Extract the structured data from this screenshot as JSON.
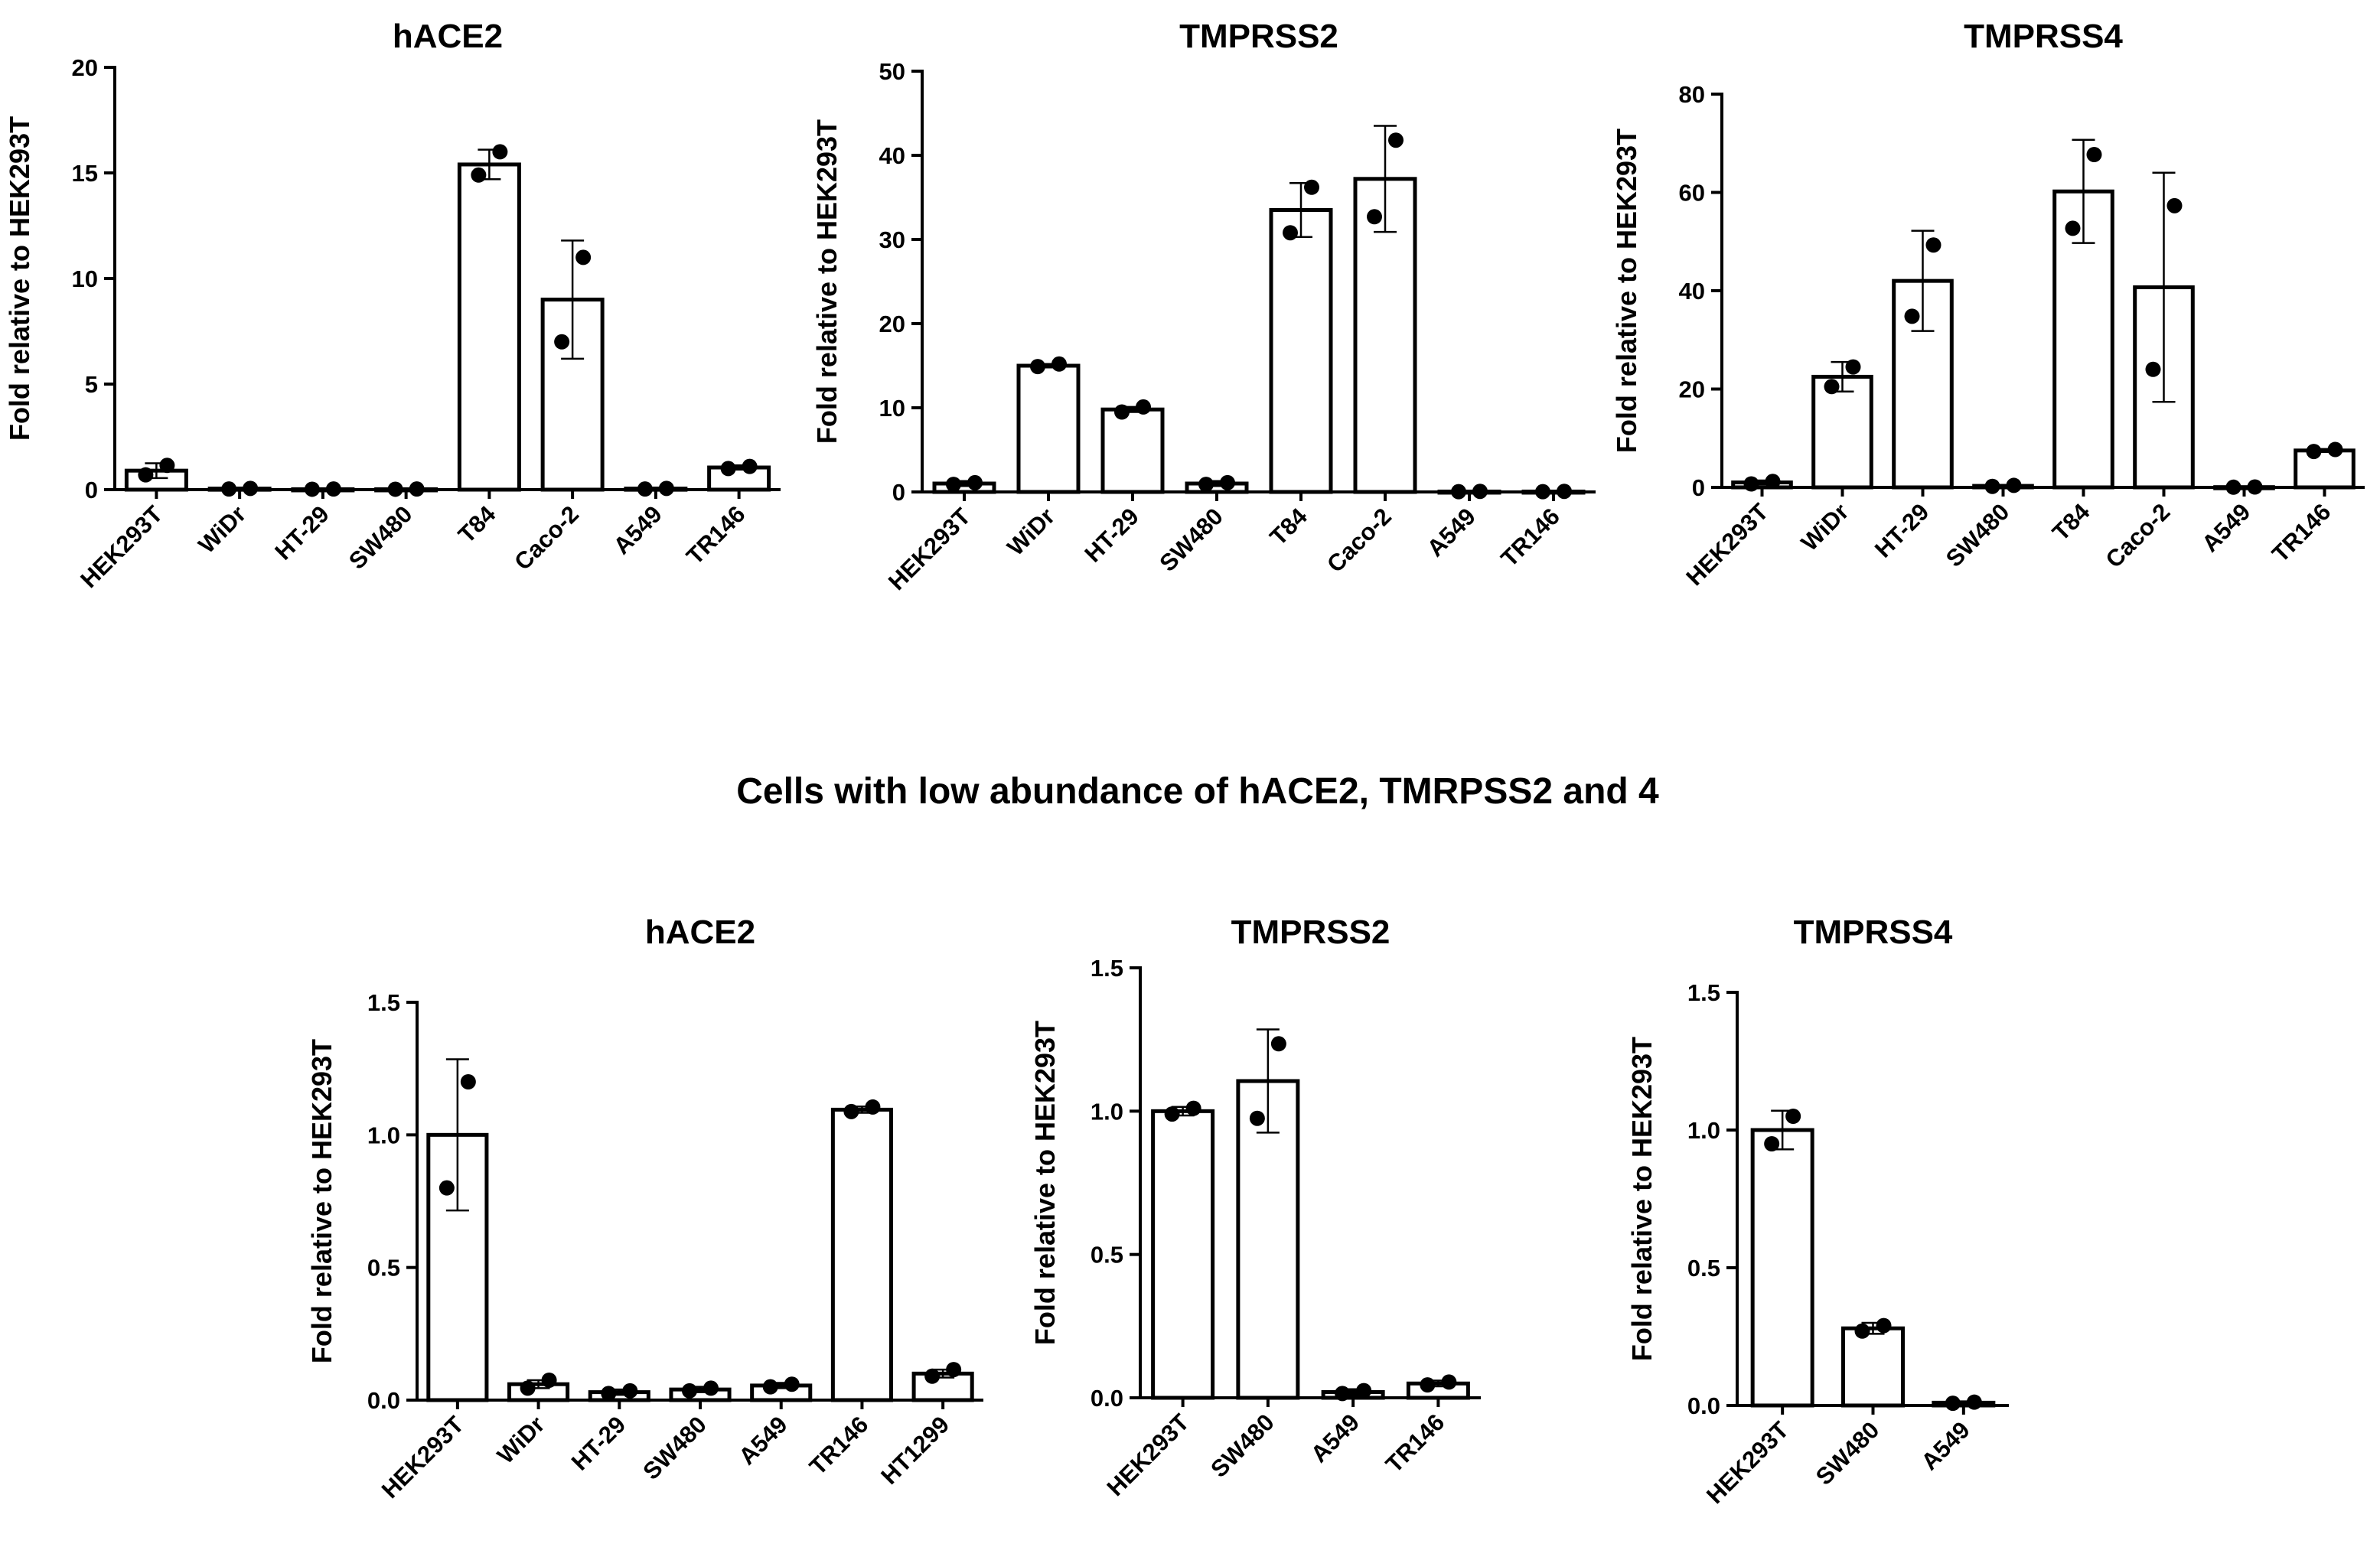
{
  "section_title": "Cells with low abundance of hACE2, TMRPSS2 and 4",
  "chart_data": [
    {
      "type": "bar",
      "title": "hACE2",
      "ylabel": "Fold relative to HEK293T",
      "xlabel": "",
      "ylim": [
        0,
        20
      ],
      "yticks": [
        0,
        5,
        10,
        15,
        20
      ],
      "yticklabels": [
        "0",
        "5",
        "10",
        "15",
        "20"
      ],
      "categories": [
        "HEK293T",
        "WiDr",
        "HT-29",
        "SW480",
        "T84",
        "Caco-2",
        "A549",
        "TR146"
      ],
      "values": [
        0.9,
        0.05,
        0.02,
        0.02,
        15.4,
        9.0,
        0.05,
        1.05
      ],
      "errors": [
        0.35,
        0.05,
        0.02,
        0.02,
        0.7,
        2.8,
        0.05,
        0.1
      ],
      "points": [
        [
          0.7,
          1.15
        ],
        [
          0.03,
          0.06
        ],
        [
          0.02,
          0.03
        ],
        [
          0.02,
          0.03
        ],
        [
          14.9,
          16.0
        ],
        [
          7.0,
          11.0
        ],
        [
          0.03,
          0.06
        ],
        [
          1.0,
          1.1
        ]
      ]
    },
    {
      "type": "bar",
      "title": "TMPRSS2",
      "ylabel": "Fold relative to HEK293T",
      "xlabel": "",
      "ylim": [
        0,
        50
      ],
      "yticks": [
        0,
        10,
        20,
        30,
        40,
        50
      ],
      "yticklabels": [
        "0",
        "10",
        "20",
        "30",
        "40",
        "50"
      ],
      "categories": [
        "HEK293T",
        "WiDr",
        "HT-29",
        "SW480",
        "T84",
        "Caco-2",
        "A549",
        "TR146"
      ],
      "values": [
        1.0,
        15.0,
        9.8,
        1.0,
        33.5,
        37.2,
        0.05,
        0.05
      ],
      "errors": [
        0.3,
        0.2,
        0.3,
        0.3,
        3.2,
        6.3,
        0.05,
        0.05
      ],
      "points": [
        [
          0.9,
          1.1
        ],
        [
          14.9,
          15.2
        ],
        [
          9.5,
          10.1
        ],
        [
          0.9,
          1.1
        ],
        [
          30.8,
          36.2
        ],
        [
          32.7,
          41.8
        ],
        [
          0.03,
          0.07
        ],
        [
          0.03,
          0.07
        ]
      ]
    },
    {
      "type": "bar",
      "title": "TMPRSS4",
      "ylabel": "Fold relative to HEK293T",
      "xlabel": "",
      "ylim": [
        0,
        80
      ],
      "yticks": [
        0,
        20,
        40,
        60,
        80
      ],
      "yticklabels": [
        "0",
        "20",
        "40",
        "60",
        "80"
      ],
      "categories": [
        "HEK293T",
        "WiDr",
        "HT-29",
        "SW480",
        "T84",
        "Caco-2",
        "A549",
        "TR146"
      ],
      "values": [
        1.0,
        22.5,
        42.0,
        0.3,
        60.2,
        40.7,
        0.05,
        7.5
      ],
      "errors": [
        0.4,
        3.0,
        10.2,
        0.2,
        10.5,
        23.3,
        0.05,
        0.3
      ],
      "points": [
        [
          0.7,
          1.2
        ],
        [
          20.5,
          24.5
        ],
        [
          34.8,
          49.3
        ],
        [
          0.2,
          0.4
        ],
        [
          52.7,
          67.7
        ],
        [
          24.0,
          57.3
        ],
        [
          0.03,
          0.07
        ],
        [
          7.3,
          7.7
        ]
      ]
    },
    {
      "type": "bar",
      "title": "hACE2",
      "ylabel": "Fold relative to HEK293T",
      "xlabel": "",
      "ylim": [
        0,
        1.5
      ],
      "yticks": [
        0,
        0.5,
        1.0,
        1.5
      ],
      "yticklabels": [
        "0.0",
        "0.5",
        "1.0",
        "1.5"
      ],
      "categories": [
        "HEK293T",
        "WiDr",
        "HT-29",
        "SW480",
        "A549",
        "TR146",
        "HT1299"
      ],
      "values": [
        1.0,
        0.06,
        0.03,
        0.04,
        0.055,
        1.095,
        0.1
      ],
      "errors": [
        0.285,
        0.015,
        0.01,
        0.01,
        0.01,
        0.012,
        0.015
      ],
      "points": [
        [
          0.8,
          1.2
        ],
        [
          0.045,
          0.075
        ],
        [
          0.025,
          0.035
        ],
        [
          0.035,
          0.045
        ],
        [
          0.05,
          0.06
        ],
        [
          1.088,
          1.105
        ],
        [
          0.09,
          0.115
        ]
      ]
    },
    {
      "type": "bar",
      "title": "TMPRSS2",
      "ylabel": "Fold relative to HEK293T",
      "xlabel": "",
      "ylim": [
        0,
        1.5
      ],
      "yticks": [
        0,
        0.5,
        1.0,
        1.5
      ],
      "yticklabels": [
        "0.0",
        "0.5",
        "1.0",
        "1.5"
      ],
      "categories": [
        "HEK293T",
        "SW480",
        "A549",
        "TR146"
      ],
      "values": [
        1.0,
        1.105,
        0.02,
        0.05
      ],
      "errors": [
        0.015,
        0.18,
        0.01,
        0.01
      ],
      "points": [
        [
          0.99,
          1.01
        ],
        [
          0.975,
          1.235
        ],
        [
          0.015,
          0.025
        ],
        [
          0.045,
          0.055
        ]
      ]
    },
    {
      "type": "bar",
      "title": "TMPRSS4",
      "ylabel": "Fold relative to HEK293T",
      "xlabel": "",
      "ylim": [
        0,
        1.5
      ],
      "yticks": [
        0,
        0.5,
        1.0,
        1.5
      ],
      "yticklabels": [
        "0.0",
        "0.5",
        "1.0",
        "1.5"
      ],
      "categories": [
        "HEK293T",
        "SW480",
        "A549"
      ],
      "values": [
        1.0,
        0.28,
        0.01
      ],
      "errors": [
        0.07,
        0.02,
        0.005
      ],
      "points": [
        [
          0.95,
          1.05
        ],
        [
          0.27,
          0.29
        ],
        [
          0.008,
          0.012
        ]
      ]
    }
  ]
}
